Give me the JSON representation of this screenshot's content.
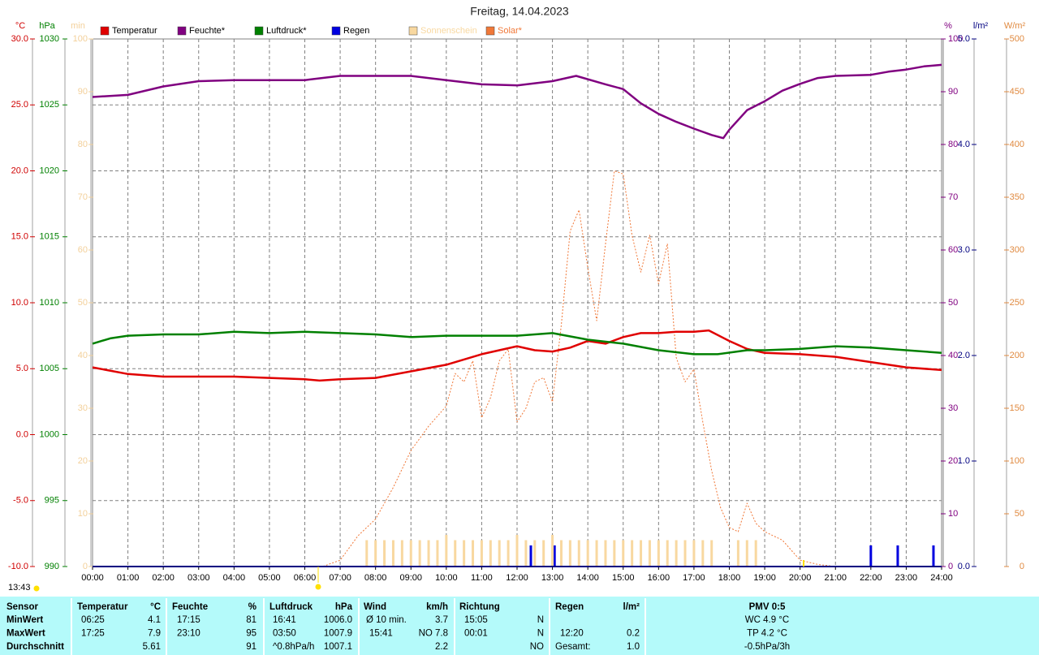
{
  "chart_data": {
    "type": "multi-axis",
    "title": "Freitag, 14.04.2023",
    "grid": true,
    "xlim": [
      0,
      24
    ],
    "xticks": [
      {
        "value": 0,
        "label": "00:00"
      },
      {
        "value": 1,
        "label": "01:00"
      },
      {
        "value": 2,
        "label": "02:00"
      },
      {
        "value": 3,
        "label": "03:00"
      },
      {
        "value": 4,
        "label": "04:00"
      },
      {
        "value": 5,
        "label": "05:00"
      },
      {
        "value": 6,
        "label": "06:00"
      },
      {
        "value": 7,
        "label": "07:00"
      },
      {
        "value": 8,
        "label": "08:00"
      },
      {
        "value": 9,
        "label": "09:00"
      },
      {
        "value": 10,
        "label": "10:00"
      },
      {
        "value": 11,
        "label": "11:00"
      },
      {
        "value": 12,
        "label": "12:00"
      },
      {
        "value": 13,
        "label": "13:00"
      },
      {
        "value": 14,
        "label": "14:00"
      },
      {
        "value": 15,
        "label": "15:00"
      },
      {
        "value": 16,
        "label": "16:00"
      },
      {
        "value": 17,
        "label": "17:00"
      },
      {
        "value": 18,
        "label": "18:00"
      },
      {
        "value": 19,
        "label": "19:00"
      },
      {
        "value": 20,
        "label": "20:00"
      },
      {
        "value": 21,
        "label": "21:00"
      },
      {
        "value": 22,
        "label": "22:00"
      },
      {
        "value": 23,
        "label": "23:00"
      },
      {
        "value": 24,
        "label": "24:00"
      }
    ],
    "axes": [
      {
        "label": "°C",
        "color": "#d00000",
        "lim": [
          -10,
          30
        ],
        "ticks": [
          {
            "value": -10,
            "label": "-10.0"
          },
          {
            "value": -5,
            "label": "-5.0"
          },
          {
            "value": 0,
            "label": "0.0"
          },
          {
            "value": 5,
            "label": "5.0"
          },
          {
            "value": 10,
            "label": "10.0"
          },
          {
            "value": 15,
            "label": "15.0"
          },
          {
            "value": 20,
            "label": "20.0"
          },
          {
            "value": 25,
            "label": "25.0"
          },
          {
            "value": 30,
            "label": "30.0"
          }
        ]
      },
      {
        "label": "hPa",
        "color": "#008000",
        "lim": [
          990,
          1030
        ],
        "ticks": [
          990,
          995,
          1000,
          1005,
          1010,
          1015,
          1020,
          1025,
          1030
        ]
      },
      {
        "label": "min",
        "color": "#f3d09a",
        "lim": [
          0,
          100
        ],
        "ticks": [
          0,
          10,
          20,
          30,
          40,
          50,
          60,
          70,
          80,
          90,
          100
        ]
      },
      {
        "label": "%",
        "color": "#800080",
        "lim": [
          0,
          100
        ],
        "ticks": [
          0,
          10,
          20,
          30,
          40,
          50,
          60,
          70,
          80,
          90,
          100
        ]
      },
      {
        "label": "l/m²",
        "color": "#000080",
        "lim": [
          0,
          5
        ],
        "ticks": [
          {
            "value": 0,
            "label": "0.0"
          },
          {
            "value": 1,
            "label": "1.0"
          },
          {
            "value": 2,
            "label": "2.0"
          },
          {
            "value": 3,
            "label": "3.0"
          },
          {
            "value": 4,
            "label": "4.0"
          },
          {
            "value": 5,
            "label": "5.0"
          }
        ]
      },
      {
        "label": "W/m²",
        "color": "#e08a40",
        "lim": [
          0,
          500
        ],
        "ticks": [
          0,
          50,
          100,
          150,
          200,
          250,
          300,
          350,
          400,
          450,
          500
        ]
      }
    ],
    "series": [
      {
        "name": "Temperatur",
        "color": "#e00000",
        "kind": "line",
        "axis": 0,
        "x": [
          0,
          1,
          2,
          3,
          4,
          5,
          6,
          6.42,
          7,
          8,
          9,
          10,
          11,
          12,
          12.5,
          13,
          13.5,
          14,
          14.5,
          15,
          15.5,
          16,
          16.5,
          17,
          17.42,
          18,
          18.5,
          19,
          20,
          21,
          22,
          23,
          24
        ],
        "values": [
          5.1,
          4.6,
          4.4,
          4.4,
          4.4,
          4.3,
          4.2,
          4.1,
          4.2,
          4.3,
          4.8,
          5.3,
          6.1,
          6.7,
          6.4,
          6.3,
          6.6,
          7.1,
          6.9,
          7.4,
          7.7,
          7.7,
          7.8,
          7.8,
          7.9,
          7.1,
          6.5,
          6.2,
          6.1,
          5.9,
          5.5,
          5.1,
          4.9
        ]
      },
      {
        "name": "Feuchte*",
        "color": "#800080",
        "kind": "line",
        "axis": 3,
        "x": [
          0,
          1,
          2,
          3,
          4,
          5,
          6,
          7,
          8,
          9,
          10,
          11,
          12,
          13,
          13.67,
          14.5,
          15,
          15.5,
          16,
          16.5,
          17,
          17.5,
          17.83,
          18,
          18.5,
          19,
          19.5,
          20,
          20.5,
          21,
          22,
          22.5,
          23,
          23.5,
          24
        ],
        "values": [
          89,
          89.4,
          91,
          92,
          92.2,
          92.2,
          92.2,
          93,
          93,
          93,
          92.2,
          91.4,
          91.2,
          92,
          93,
          91.4,
          90.5,
          87.8,
          85.8,
          84.3,
          83,
          81.8,
          81.2,
          82.8,
          86.5,
          88.2,
          90.2,
          91.5,
          92.6,
          93,
          93.2,
          93.8,
          94.2,
          94.8,
          95.1
        ]
      },
      {
        "name": "Luftdruck*",
        "color": "#008000",
        "kind": "line",
        "axis": 1,
        "x": [
          0,
          0.5,
          1,
          2,
          3,
          4,
          5,
          6,
          7,
          8,
          9,
          10,
          11,
          12,
          13,
          14,
          15,
          16,
          17,
          17.67,
          18.5,
          19,
          20,
          21,
          22,
          23,
          24
        ],
        "values": [
          1006.9,
          1007.3,
          1007.5,
          1007.6,
          1007.6,
          1007.8,
          1007.7,
          1007.8,
          1007.7,
          1007.6,
          1007.4,
          1007.5,
          1007.5,
          1007.5,
          1007.7,
          1007.2,
          1006.9,
          1006.4,
          1006.1,
          1006.1,
          1006.4,
          1006.4,
          1006.5,
          1006.7,
          1006.6,
          1006.4,
          1006.2
        ]
      },
      {
        "name": "Regen",
        "color": "#0000e0",
        "kind": "bar",
        "axis": 4,
        "x": [
          12.39,
          13.06,
          22.0,
          22.76,
          23.77
        ],
        "values": [
          0.2,
          0.2,
          0.2,
          0.2,
          0.2
        ]
      },
      {
        "name": "Sonnenschein",
        "color": "#f8d8a0",
        "kind": "bar",
        "axis": 2,
        "x": [
          7.75,
          8,
          8.25,
          8.5,
          8.75,
          9,
          9.25,
          9.5,
          9.75,
          10,
          10.25,
          10.5,
          10.75,
          11,
          11.25,
          11.5,
          11.75,
          12,
          12.25,
          12.5,
          12.75,
          13,
          13.25,
          13.5,
          13.75,
          14,
          14.25,
          14.5,
          14.75,
          15,
          15.25,
          15.5,
          15.75,
          16,
          16.25,
          16.5,
          16.75,
          17,
          17.25,
          17.5,
          17.75,
          18,
          18.25,
          18.5,
          18.75
        ],
        "values": [
          5,
          5,
          5,
          5,
          5,
          5,
          5,
          5,
          5,
          6,
          5,
          5,
          5,
          5,
          5,
          5,
          5,
          6,
          5,
          5,
          5,
          6,
          5,
          5,
          5,
          5,
          5,
          5,
          5,
          5,
          5,
          5,
          5,
          5,
          5,
          5,
          5,
          5,
          5,
          5,
          0,
          0,
          5,
          5,
          5
        ]
      },
      {
        "name": "Solar*",
        "color": "#f07838",
        "kind": "dashed",
        "axis": 5,
        "x": [
          0,
          6.5,
          7,
          7.5,
          8,
          8.5,
          9,
          9.5,
          10,
          10.25,
          10.5,
          10.75,
          11,
          11.25,
          11.5,
          11.75,
          12,
          12.25,
          12.5,
          12.75,
          13,
          13.25,
          13.5,
          13.75,
          14,
          14.25,
          14.5,
          14.75,
          15,
          15.25,
          15.5,
          15.75,
          16,
          16.25,
          16.5,
          16.75,
          17,
          17.25,
          17.5,
          17.75,
          18,
          18.25,
          18.5,
          18.75,
          19,
          19.5,
          20,
          20.5,
          21,
          24
        ],
        "values": [
          0,
          0,
          6,
          29,
          45,
          75,
          110,
          133,
          152,
          183,
          175,
          195,
          141,
          160,
          195,
          206,
          137,
          150,
          175,
          179,
          156,
          229,
          318,
          338,
          283,
          233,
          306,
          375,
          372,
          314,
          279,
          314,
          268,
          306,
          198,
          175,
          187,
          137,
          91,
          56,
          37,
          33,
          60,
          41,
          33,
          25,
          6,
          2,
          0,
          0
        ]
      }
    ]
  },
  "time_label": "13:43",
  "stats_table": {
    "header": [
      "Sensor",
      "Temperatur",
      "°C",
      "Feuchte",
      "%",
      "Luftdruck",
      "hPa",
      "Wind",
      "km/h",
      "Richtung",
      "Regen",
      "l/m²",
      "PMV 0:5"
    ],
    "rows": [
      [
        "MinWert",
        "06:25",
        "4.1",
        "17:15",
        "81",
        "16:41",
        "1006.0",
        "Ø 10 min.",
        "3.7",
        "15:05",
        "N",
        null,
        null,
        "WC 4.9 °C"
      ],
      [
        "MaxWert",
        "17:25",
        "7.9",
        "23:10",
        "95",
        "03:50",
        "1007.9",
        "15:41",
        "NO 7.8",
        "00:01",
        "N",
        "12:20",
        "0.2",
        "TP 4.2 °C"
      ],
      [
        "Durchschnitt",
        null,
        "5.61",
        null,
        "91",
        "^0.8hPa/h",
        "1007.1",
        null,
        "2.2",
        null,
        "NO",
        "Gesamt:",
        "1.0",
        "-0.5hPa/3h"
      ]
    ]
  }
}
